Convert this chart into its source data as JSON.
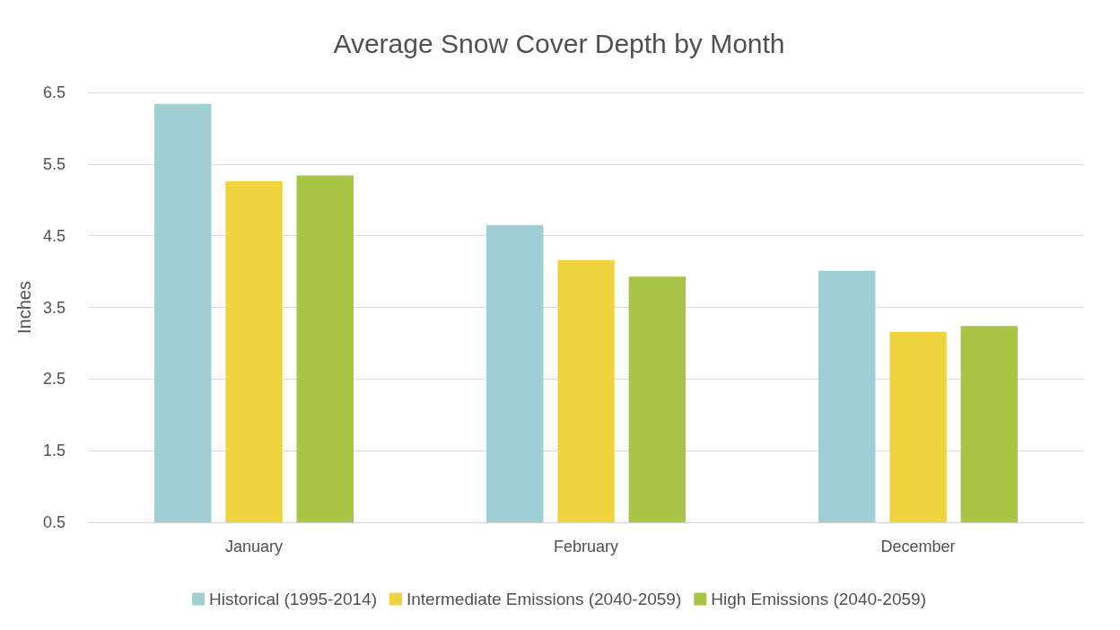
{
  "chart_data": {
    "type": "bar",
    "title": "Average Snow Cover Depth by Month",
    "ylabel": "Inches",
    "categories": [
      "January",
      "February",
      "December"
    ],
    "series": [
      {
        "name": "Historical (1995-2014)",
        "color": "#a0cfd3",
        "values": [
          6.34,
          4.65,
          4.01
        ]
      },
      {
        "name": "Intermediate Emissions (2040-2059)",
        "color": "#f0d43f",
        "values": [
          5.26,
          4.16,
          3.16
        ]
      },
      {
        "name": "High Emissions (2040-2059)",
        "color": "#a9c546",
        "values": [
          5.34,
          3.93,
          3.24
        ]
      }
    ],
    "ylim": [
      0.5,
      6.5
    ],
    "yticks": [
      0.5,
      1.5,
      2.5,
      3.5,
      4.5,
      5.5,
      6.5
    ],
    "grid": "y",
    "legend": "bottom"
  }
}
